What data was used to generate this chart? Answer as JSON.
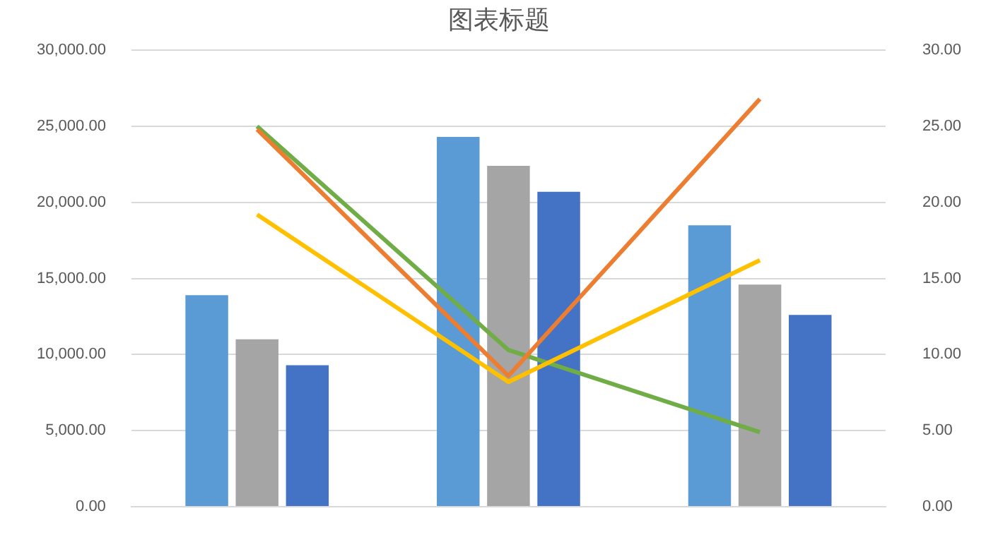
{
  "chart_data": {
    "type": "bar",
    "title": "图表标题",
    "categories": [
      null,
      null,
      null
    ],
    "series": [
      {
        "color": "#5b9bd5",
        "values": [
          13900,
          24300,
          18500
        ]
      },
      {
        "type": "line",
        "axis": "y2",
        "color": "#ed7d31",
        "values": [
          24.8,
          8.6,
          26.8
        ]
      },
      {
        "color": "#a5a5a5",
        "values": [
          11000,
          22400,
          14600
        ]
      },
      {
        "type": "line",
        "axis": "y2",
        "color": "#ffc000",
        "values": [
          19.2,
          8.2,
          16.2
        ]
      },
      {
        "color": "#4472c4",
        "values": [
          9300,
          20700,
          12600
        ]
      },
      {
        "type": "line",
        "axis": "y2",
        "color": "#70ad47",
        "values": [
          25.0,
          10.3,
          4.9
        ]
      }
    ],
    "ylim": [
      0,
      30000
    ],
    "yticks": [
      {
        "value": 0,
        "label": "0.00"
      },
      {
        "value": 5000,
        "label": "5,000.00"
      },
      {
        "value": 10000,
        "label": "10,000.00"
      },
      {
        "value": 15000,
        "label": "15,000.00"
      },
      {
        "value": 20000,
        "label": "20,000.00"
      },
      {
        "value": 25000,
        "label": "25,000.00"
      },
      {
        "value": 30000,
        "label": "30,000.00"
      }
    ],
    "y2lim": [
      0,
      30
    ],
    "y2ticks": [
      {
        "value": 0,
        "label": "0.00"
      },
      {
        "value": 5,
        "label": "5.00"
      },
      {
        "value": 10,
        "label": "10.00"
      },
      {
        "value": 15,
        "label": "15.00"
      },
      {
        "value": 20,
        "label": "20.00"
      },
      {
        "value": 25,
        "label": "25.00"
      },
      {
        "value": 30,
        "label": "30.00"
      }
    ],
    "grid": "y",
    "legend": false,
    "marker": "none",
    "line_style": "solid",
    "tick_labels": "y"
  }
}
